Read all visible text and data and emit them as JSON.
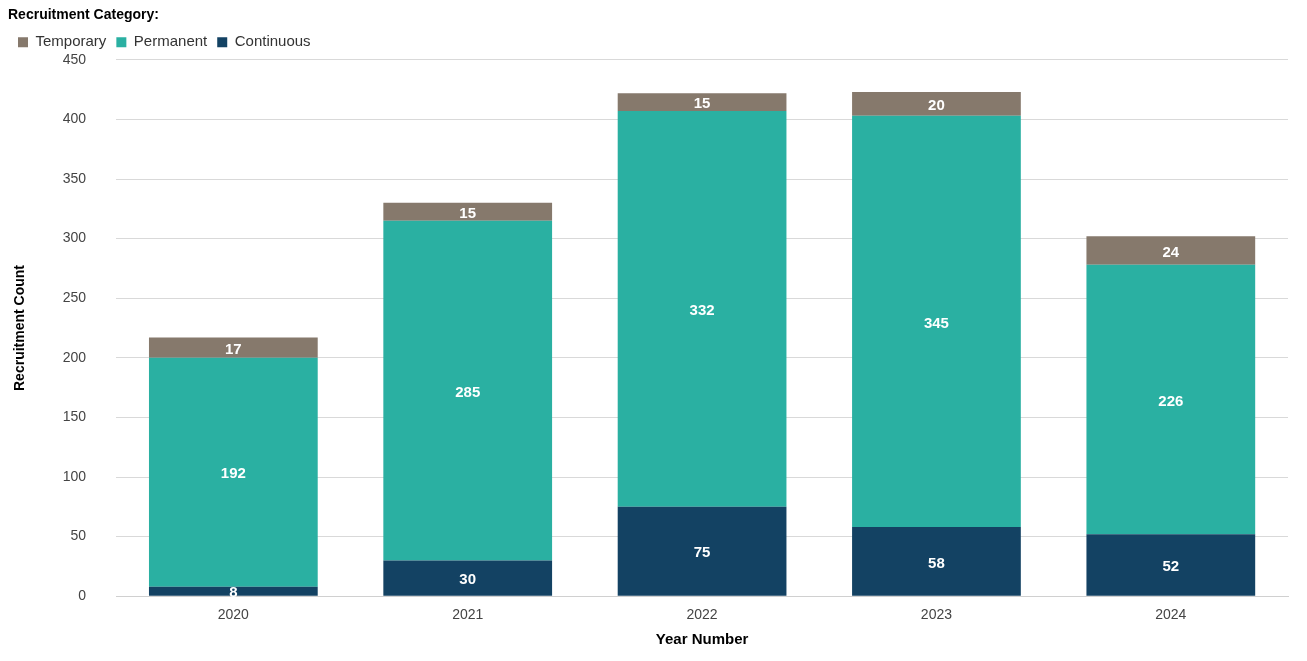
{
  "chart_data": {
    "type": "bar",
    "stacked": true,
    "legend_title": "Recruitment Category:",
    "xlabel": "Year Number",
    "ylabel": "Recruitment Count",
    "categories": [
      "2020",
      "2021",
      "2022",
      "2023",
      "2024"
    ],
    "series": [
      {
        "name": "Continuous",
        "color": "#134263",
        "values": [
          8,
          30,
          75,
          58,
          52
        ]
      },
      {
        "name": "Permanent",
        "color": "#2ab0a2",
        "values": [
          192,
          285,
          332,
          345,
          226
        ]
      },
      {
        "name": "Temporary",
        "color": "#86796c",
        "values": [
          17,
          15,
          15,
          20,
          24
        ]
      }
    ],
    "ylim": [
      0,
      450
    ],
    "yticks": [
      0,
      50,
      100,
      150,
      200,
      250,
      300,
      350,
      400,
      450
    ],
    "grid": "y",
    "legend": "top left",
    "data_labels": true
  }
}
